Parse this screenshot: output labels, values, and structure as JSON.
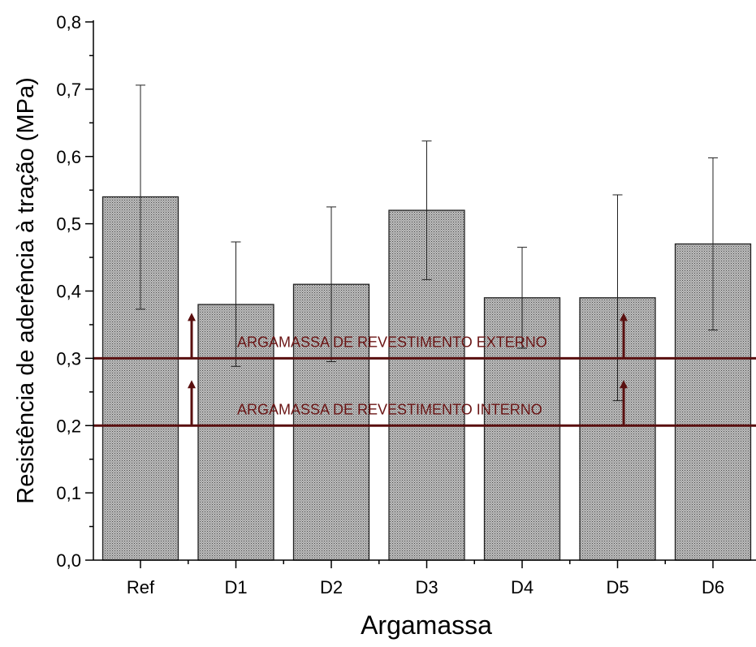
{
  "chart_data": {
    "type": "bar",
    "xlabel": "Argamassa",
    "ylabel": "Resistência de aderência à tração (MPa)",
    "categories": [
      "Ref",
      "D1",
      "D2",
      "D3",
      "D4",
      "D5",
      "D6"
    ],
    "values": [
      0.54,
      0.38,
      0.41,
      0.52,
      0.39,
      0.39,
      0.47
    ],
    "error_low": [
      0.373,
      0.288,
      0.295,
      0.417,
      0.315,
      0.237,
      0.342
    ],
    "error_high": [
      0.706,
      0.473,
      0.525,
      0.623,
      0.465,
      0.543,
      0.598
    ],
    "ylim": [
      0,
      0.8
    ],
    "yticks": [
      "0,0",
      "0,1",
      "0,2",
      "0,3",
      "0,4",
      "0,5",
      "0,6",
      "0,7",
      "0,8"
    ],
    "ytick_values": [
      0,
      0.1,
      0.2,
      0.3,
      0.4,
      0.5,
      0.6,
      0.7,
      0.8
    ],
    "grid": false,
    "reference_lines": [
      {
        "value": 0.3,
        "label": "ARGAMASSA DE REVESTIMENTO EXTERNO"
      },
      {
        "value": 0.2,
        "label": "ARGAMASSA DE REVESTIMENTO INTERNO"
      }
    ],
    "colors": {
      "bar_fill": "#a8a8a8",
      "bar_stroke": "#222222",
      "reference_line": "#5a0f0f",
      "reference_text": "#6b1515"
    }
  }
}
